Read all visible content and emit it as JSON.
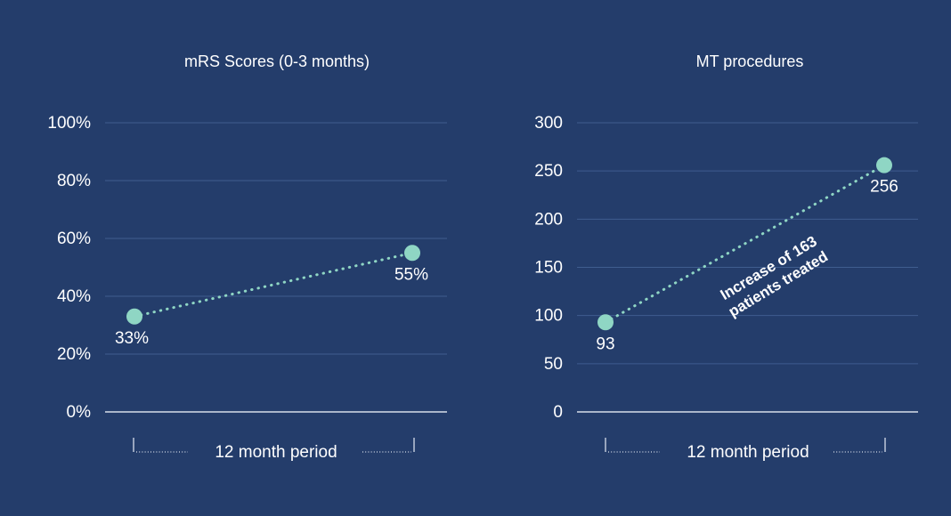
{
  "colors": {
    "background": "#243d6b",
    "text": "#ffffff",
    "gridline": "#3f5d8f",
    "baseline": "#d7deea",
    "marker": "#8fd6c4",
    "connector": "#8fd6c4"
  },
  "chart_data": [
    {
      "type": "line",
      "title": "mRS Scores (0-3 months)",
      "x_caption": "12 month period",
      "yticks": [
        "100%",
        "80%",
        "60%",
        "40%",
        "20%",
        "0%"
      ],
      "ylim": [
        0,
        100
      ],
      "grid": true,
      "points": [
        {
          "value": 33,
          "label": "33%"
        },
        {
          "value": 55,
          "label": "55%"
        }
      ],
      "annotation": ""
    },
    {
      "type": "line",
      "title": "MT procedures",
      "x_caption": "12 month period",
      "yticks": [
        "300",
        "250",
        "200",
        "150",
        "100",
        "50",
        "0"
      ],
      "ylim": [
        0,
        300
      ],
      "grid": true,
      "points": [
        {
          "value": 93,
          "label": "93"
        },
        {
          "value": 256,
          "label": "256"
        }
      ],
      "annotation": "Increase of 163 patients treated"
    }
  ]
}
